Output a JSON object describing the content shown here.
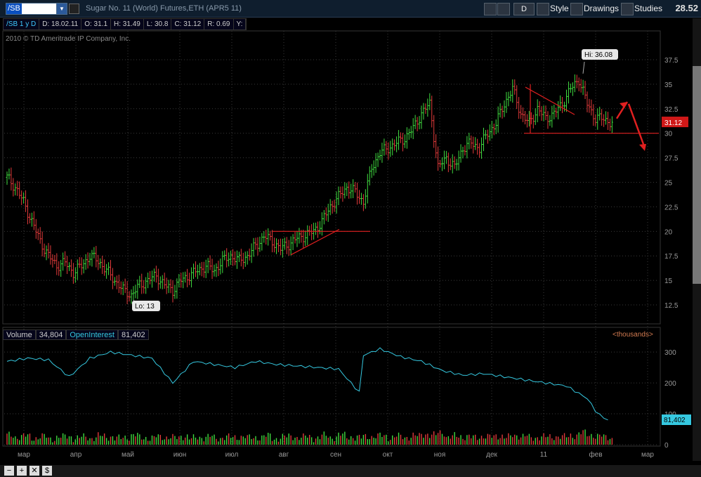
{
  "toolbar": {
    "symbol": "/SB",
    "title": "Sugar No. 11 (World) Futures,ETH (APR5 11)",
    "period_btn": "D",
    "style_label": "Style",
    "drawings_label": "Drawings",
    "studies_label": "Studies",
    "last_price": "28.52"
  },
  "infobar": {
    "symbol_period": "/SB 1 y D",
    "date": "D: 18.02.11",
    "open": "O: 31.1",
    "high": "H: 31.49",
    "low": "L: 30.8",
    "close": "C: 31.12",
    "range": "R: 0.69",
    "y": "Y:"
  },
  "copyright": "2010 © TD Ameritrade IP Company, Inc.",
  "volume_bar": {
    "volume_label": "Volume",
    "volume_value": "34,804",
    "oi_label": "OpenInterest",
    "oi_value": "81,402",
    "units": "<thousands>"
  },
  "chart_data": {
    "type": "bar",
    "price_axis": [
      "37.5",
      "35",
      "32.5",
      "30",
      "27.5",
      "25",
      "22.5",
      "20",
      "17.5",
      "15",
      "12.5"
    ],
    "volume_axis": [
      "300",
      "200",
      "100",
      "0"
    ],
    "months": [
      "мар",
      "апр",
      "май",
      "июн",
      "июл",
      "авг",
      "сен",
      "окт",
      "ноя",
      "дек",
      "11",
      "фев",
      "мар"
    ],
    "hi_label": "Hi: 36.08",
    "lo_label": "Lo: 13",
    "current_price_label": "31.12",
    "oi_current_label": "81,402",
    "ylim": [
      11,
      39
    ],
    "price_path": [
      [
        0,
        25.5
      ],
      [
        4,
        24.5
      ],
      [
        8,
        23
      ],
      [
        12,
        21
      ],
      [
        16,
        19
      ],
      [
        20,
        17.5
      ],
      [
        24,
        16.5
      ],
      [
        28,
        16.8
      ],
      [
        32,
        15.8
      ],
      [
        36,
        16.5
      ],
      [
        40,
        17.5
      ],
      [
        44,
        17
      ],
      [
        48,
        16
      ],
      [
        52,
        15
      ],
      [
        56,
        14
      ],
      [
        60,
        13.5
      ],
      [
        64,
        14.5
      ],
      [
        68,
        15
      ],
      [
        72,
        15.5
      ],
      [
        76,
        14.5
      ],
      [
        80,
        14
      ],
      [
        84,
        15
      ],
      [
        88,
        15.5
      ],
      [
        92,
        16
      ],
      [
        96,
        16.5
      ],
      [
        100,
        16
      ],
      [
        104,
        17
      ],
      [
        108,
        17.5
      ],
      [
        112,
        17
      ],
      [
        116,
        17.5
      ],
      [
        120,
        18.5
      ],
      [
        124,
        19.5
      ],
      [
        128,
        19
      ],
      [
        132,
        18.2
      ],
      [
        136,
        18.7
      ],
      [
        140,
        19.3
      ],
      [
        144,
        19.6
      ],
      [
        148,
        20
      ],
      [
        152,
        21
      ],
      [
        156,
        22.5
      ],
      [
        160,
        23.5
      ],
      [
        164,
        24.5
      ],
      [
        168,
        24
      ],
      [
        172,
        23
      ],
      [
        176,
        26.5
      ],
      [
        180,
        28
      ],
      [
        184,
        28.5
      ],
      [
        188,
        29
      ],
      [
        192,
        29.5
      ],
      [
        196,
        30.5
      ],
      [
        200,
        32
      ],
      [
        204,
        33
      ],
      [
        208,
        26.5
      ],
      [
        212,
        27.5
      ],
      [
        216,
        26.5
      ],
      [
        220,
        28.5
      ],
      [
        224,
        29
      ],
      [
        228,
        28.5
      ],
      [
        232,
        30
      ],
      [
        236,
        31
      ],
      [
        240,
        33
      ],
      [
        244,
        34.5
      ],
      [
        248,
        32
      ],
      [
        252,
        31
      ],
      [
        256,
        32.5
      ],
      [
        260,
        31.5
      ],
      [
        264,
        32
      ],
      [
        268,
        33
      ],
      [
        272,
        34.5
      ],
      [
        276,
        35.5
      ],
      [
        280,
        33
      ],
      [
        284,
        31.5
      ],
      [
        288,
        31.5
      ],
      [
        292,
        31
      ]
    ],
    "volume_heights": [
      [
        0,
        30
      ],
      [
        4,
        25
      ],
      [
        8,
        28
      ],
      [
        12,
        22
      ],
      [
        16,
        26
      ],
      [
        20,
        20
      ],
      [
        24,
        24
      ],
      [
        28,
        27
      ],
      [
        32,
        21
      ],
      [
        36,
        25
      ],
      [
        40,
        22
      ],
      [
        44,
        28
      ],
      [
        48,
        26
      ],
      [
        52,
        20
      ],
      [
        56,
        25
      ],
      [
        60,
        30
      ],
      [
        64,
        23
      ],
      [
        68,
        21
      ],
      [
        72,
        26
      ],
      [
        76,
        24
      ],
      [
        80,
        22
      ],
      [
        84,
        28
      ],
      [
        88,
        20
      ],
      [
        92,
        24
      ],
      [
        96,
        26
      ],
      [
        100,
        21
      ],
      [
        104,
        25
      ],
      [
        108,
        23
      ],
      [
        112,
        27
      ],
      [
        116,
        22
      ],
      [
        120,
        24
      ],
      [
        124,
        28
      ],
      [
        128,
        20
      ],
      [
        132,
        25
      ],
      [
        136,
        27
      ],
      [
        140,
        23
      ],
      [
        144,
        26
      ],
      [
        148,
        22
      ],
      [
        152,
        29
      ],
      [
        156,
        24
      ],
      [
        160,
        31
      ],
      [
        164,
        26
      ],
      [
        168,
        22
      ],
      [
        172,
        28
      ],
      [
        176,
        25
      ],
      [
        180,
        30
      ],
      [
        184,
        23
      ],
      [
        188,
        27
      ],
      [
        192,
        25
      ],
      [
        196,
        28
      ],
      [
        200,
        35
      ],
      [
        204,
        30
      ],
      [
        208,
        40
      ],
      [
        212,
        24
      ],
      [
        216,
        28
      ],
      [
        220,
        26
      ],
      [
        224,
        23
      ],
      [
        228,
        27
      ],
      [
        232,
        25
      ],
      [
        236,
        29
      ],
      [
        240,
        24
      ],
      [
        244,
        30
      ],
      [
        248,
        28
      ],
      [
        252,
        22
      ],
      [
        256,
        26
      ],
      [
        260,
        24
      ],
      [
        264,
        27
      ],
      [
        268,
        25
      ],
      [
        272,
        30
      ],
      [
        276,
        38
      ],
      [
        280,
        32
      ],
      [
        284,
        28
      ],
      [
        288,
        24
      ],
      [
        292,
        20
      ]
    ],
    "oi_values": [
      [
        0,
        270
      ],
      [
        10,
        280
      ],
      [
        20,
        275
      ],
      [
        30,
        220
      ],
      [
        40,
        280
      ],
      [
        50,
        300
      ],
      [
        60,
        290
      ],
      [
        70,
        280
      ],
      [
        80,
        200
      ],
      [
        90,
        270
      ],
      [
        100,
        260
      ],
      [
        110,
        250
      ],
      [
        120,
        270
      ],
      [
        130,
        260
      ],
      [
        140,
        255
      ],
      [
        150,
        250
      ],
      [
        160,
        245
      ],
      [
        170,
        170
      ],
      [
        172,
        290
      ],
      [
        180,
        310
      ],
      [
        190,
        285
      ],
      [
        200,
        270
      ],
      [
        210,
        240
      ],
      [
        220,
        225
      ],
      [
        230,
        230
      ],
      [
        240,
        220
      ],
      [
        250,
        210
      ],
      [
        260,
        200
      ],
      [
        270,
        190
      ],
      [
        280,
        150
      ],
      [
        285,
        100
      ],
      [
        290,
        80
      ]
    ]
  },
  "colors": {
    "up": "#3fd93f",
    "down": "#e03a3a",
    "oi_line": "#35c8e0",
    "grid": "#3a3a3a",
    "axis_text": "#999999"
  }
}
